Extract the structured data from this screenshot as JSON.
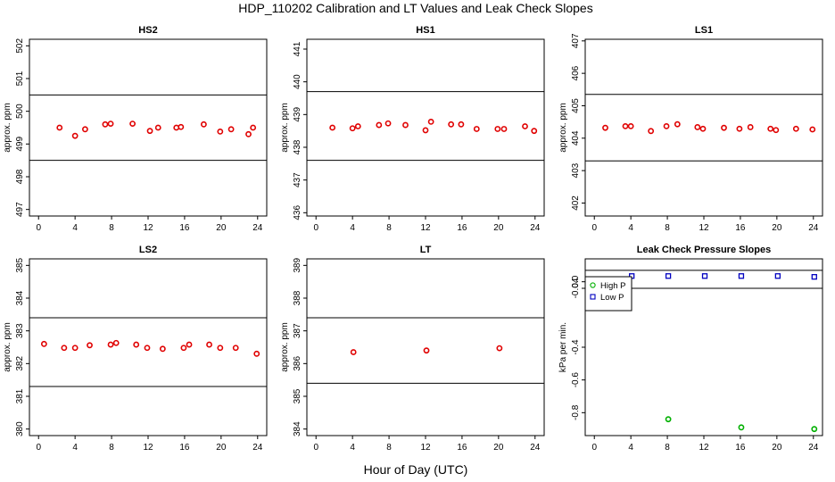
{
  "title": "HDP_110202  Calibration and LT Values and Leak Check Slopes",
  "xlabel": "Hour of Day (UTC)",
  "chart_data": [
    {
      "type": "scatter",
      "title": "HS2",
      "ylabel": "approx. ppm",
      "xlim": [
        -1,
        25
      ],
      "ylim": [
        496.8,
        502.2
      ],
      "xticks": [
        0,
        4,
        8,
        12,
        16,
        20,
        24
      ],
      "yticks": [
        497,
        498,
        499,
        500,
        501,
        502
      ],
      "ytick_labels": [
        "497",
        "498",
        "499",
        "500",
        "501",
        "502"
      ],
      "hlines": [
        500.5,
        498.5
      ],
      "series": [
        {
          "color": "#e00000",
          "marker": "circle",
          "x": [
            2.3,
            4.0,
            5.1,
            7.3,
            7.9,
            10.3,
            12.2,
            13.1,
            15.1,
            15.6,
            18.1,
            19.9,
            21.1,
            23.0,
            23.5
          ],
          "y": [
            499.5,
            499.25,
            499.45,
            499.6,
            499.62,
            499.62,
            499.4,
            499.5,
            499.5,
            499.52,
            499.6,
            499.38,
            499.45,
            499.3,
            499.5
          ]
        }
      ]
    },
    {
      "type": "scatter",
      "title": "HS1",
      "ylabel": "approx. ppm",
      "xlim": [
        -1,
        25
      ],
      "ylim": [
        435.9,
        441.3
      ],
      "xticks": [
        0,
        4,
        8,
        12,
        16,
        20,
        24
      ],
      "yticks": [
        436,
        437,
        438,
        439,
        440,
        441
      ],
      "ytick_labels": [
        "436",
        "437",
        "438",
        "439",
        "440",
        "441"
      ],
      "hlines": [
        439.7,
        437.6
      ],
      "series": [
        {
          "color": "#e00000",
          "marker": "circle",
          "x": [
            1.8,
            4.0,
            4.6,
            6.9,
            7.9,
            9.8,
            12.0,
            12.6,
            14.8,
            15.9,
            17.6,
            19.9,
            20.6,
            22.9,
            23.9
          ],
          "y": [
            438.6,
            438.58,
            438.64,
            438.68,
            438.73,
            438.68,
            438.52,
            438.78,
            438.7,
            438.7,
            438.56,
            438.56,
            438.56,
            438.64,
            438.5
          ]
        }
      ]
    },
    {
      "type": "scatter",
      "title": "LS1",
      "ylabel": "approx. ppm",
      "xlim": [
        -1,
        25
      ],
      "ylim": [
        401.6,
        407.05
      ],
      "xticks": [
        0,
        4,
        8,
        12,
        16,
        20,
        24
      ],
      "yticks": [
        402,
        403,
        404,
        405,
        406,
        407
      ],
      "ytick_labels": [
        "402",
        "403",
        "404",
        "405",
        "406",
        "407"
      ],
      "hlines": [
        405.35,
        403.3
      ],
      "series": [
        {
          "color": "#e00000",
          "marker": "circle",
          "x": [
            1.2,
            3.4,
            4.0,
            6.2,
            7.9,
            9.1,
            11.3,
            11.9,
            14.2,
            15.9,
            17.1,
            19.3,
            19.9,
            22.1,
            23.9
          ],
          "y": [
            404.32,
            404.37,
            404.37,
            404.22,
            404.37,
            404.43,
            404.34,
            404.29,
            404.32,
            404.29,
            404.34,
            404.29,
            404.25,
            404.29,
            404.27
          ]
        }
      ]
    },
    {
      "type": "scatter",
      "title": "LS2",
      "ylabel": "approx. ppm",
      "xlim": [
        -1,
        25
      ],
      "ylim": [
        379.8,
        385.2
      ],
      "xticks": [
        0,
        4,
        8,
        12,
        16,
        20,
        24
      ],
      "yticks": [
        380,
        381,
        382,
        383,
        384,
        385
      ],
      "ytick_labels": [
        "380",
        "381",
        "382",
        "383",
        "384",
        "385"
      ],
      "hlines": [
        383.4,
        381.3
      ],
      "series": [
        {
          "color": "#e00000",
          "marker": "circle",
          "x": [
            0.6,
            2.8,
            4.0,
            5.6,
            7.9,
            8.5,
            10.7,
            11.9,
            13.6,
            15.9,
            16.5,
            18.7,
            19.9,
            21.6,
            23.9
          ],
          "y": [
            382.6,
            382.48,
            382.48,
            382.56,
            382.58,
            382.63,
            382.58,
            382.48,
            382.45,
            382.48,
            382.58,
            382.58,
            382.48,
            382.48,
            382.3
          ]
        }
      ]
    },
    {
      "type": "scatter",
      "title": "LT",
      "ylabel": "approx. ppm",
      "xlim": [
        -1,
        25
      ],
      "ylim": [
        383.8,
        389.2
      ],
      "xticks": [
        0,
        4,
        8,
        12,
        16,
        20,
        24
      ],
      "yticks": [
        384,
        385,
        386,
        387,
        388,
        389
      ],
      "ytick_labels": [
        "384",
        "385",
        "386",
        "387",
        "388",
        "389"
      ],
      "hlines": [
        387.4,
        385.4
      ],
      "series": [
        {
          "color": "#e00000",
          "marker": "circle",
          "x": [
            4.1,
            12.1,
            20.1
          ],
          "y": [
            386.35,
            386.4,
            386.47
          ]
        }
      ]
    },
    {
      "type": "scatter",
      "title": "Leak Check Pressure Slopes",
      "ylabel": "kPa per min.",
      "xlim": [
        -1,
        25
      ],
      "ylim": [
        -0.94,
        0.14
      ],
      "xticks": [
        0,
        4,
        8,
        12,
        16,
        20,
        24
      ],
      "yticks": [
        0.0,
        -0.04,
        -0.4,
        -0.6,
        -0.8
      ],
      "ytick_labels": [
        "0.0",
        "-0.04",
        "-0.4",
        "-0.6",
        "-0.8"
      ],
      "hlines": [
        0.07,
        -0.04
      ],
      "legend_position": "left",
      "series": [
        {
          "name": "High P",
          "color": "#00b000",
          "marker": "circle",
          "x": [
            8.1,
            16.1,
            24.1
          ],
          "y": [
            -0.84,
            -0.89,
            -0.9
          ]
        },
        {
          "name": "Low P",
          "color": "#0000c0",
          "marker": "square",
          "x": [
            4.1,
            8.1,
            12.1,
            16.1,
            20.1,
            24.1
          ],
          "y": [
            0.035,
            0.035,
            0.035,
            0.035,
            0.035,
            0.03
          ]
        }
      ]
    }
  ]
}
